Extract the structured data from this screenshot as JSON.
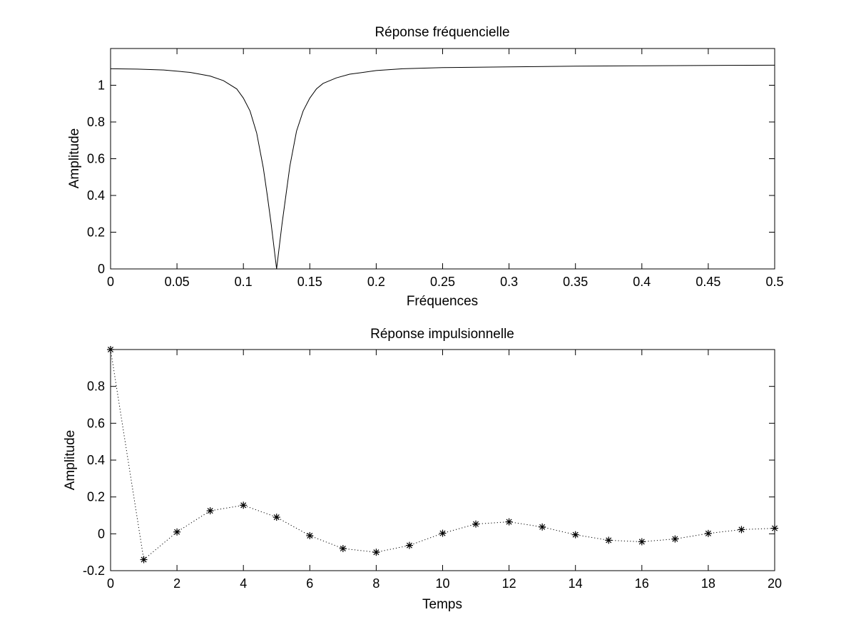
{
  "chart_data": [
    {
      "type": "line",
      "title": "Réponse fréquencielle",
      "xlabel": "Fréquences",
      "ylabel": "Amplitude",
      "xlim": [
        0,
        0.5
      ],
      "ylim": [
        0,
        1.2
      ],
      "xticks": [
        0,
        0.05,
        0.1,
        0.15,
        0.2,
        0.25,
        0.3,
        0.35,
        0.4,
        0.45,
        0.5
      ],
      "xtick_labels": [
        "0",
        "0.05",
        "0.1",
        "0.15",
        "0.2",
        "0.25",
        "0.3",
        "0.35",
        "0.4",
        "0.45",
        "0.5"
      ],
      "yticks": [
        0,
        0.2,
        0.4,
        0.6,
        0.8,
        1
      ],
      "ytick_labels": [
        "0",
        "0.2",
        "0.4",
        "0.6",
        "0.8",
        "1"
      ],
      "grid": false,
      "line_style": "solid",
      "color": "#000000",
      "series": [
        {
          "x": [
            0,
            0.02,
            0.04,
            0.06,
            0.075,
            0.085,
            0.095,
            0.1,
            0.105,
            0.11,
            0.115,
            0.118,
            0.121,
            0.123,
            0.125,
            0.127,
            0.129,
            0.132,
            0.135,
            0.14,
            0.145,
            0.15,
            0.155,
            0.16,
            0.17,
            0.18,
            0.2,
            0.22,
            0.25,
            0.3,
            0.35,
            0.4,
            0.45,
            0.5
          ],
          "y": [
            1.09,
            1.088,
            1.083,
            1.07,
            1.05,
            1.025,
            0.98,
            0.93,
            0.86,
            0.74,
            0.55,
            0.4,
            0.24,
            0.12,
            0.0,
            0.12,
            0.24,
            0.4,
            0.56,
            0.75,
            0.86,
            0.93,
            0.98,
            1.01,
            1.04,
            1.06,
            1.08,
            1.09,
            1.096,
            1.1,
            1.104,
            1.106,
            1.108,
            1.109
          ]
        }
      ]
    },
    {
      "type": "line",
      "title": "Réponse impulsionnelle",
      "xlabel": "Temps",
      "ylabel": "Amplitude",
      "xlim": [
        0,
        20
      ],
      "ylim": [
        -0.2,
        1
      ],
      "xticks": [
        0,
        2,
        4,
        6,
        8,
        10,
        12,
        14,
        16,
        18,
        20
      ],
      "xtick_labels": [
        "0",
        "2",
        "4",
        "6",
        "8",
        "10",
        "12",
        "14",
        "16",
        "18",
        "20"
      ],
      "yticks": [
        -0.2,
        0,
        0.2,
        0.4,
        0.6,
        0.8
      ],
      "ytick_labels": [
        "-0.2",
        "0",
        "0.2",
        "0.4",
        "0.6",
        "0.8"
      ],
      "grid": false,
      "line_style": "dotted",
      "marker": "asterisk",
      "color": "#000000",
      "series": [
        {
          "x": [
            0,
            1,
            2,
            3,
            4,
            5,
            6,
            7,
            8,
            9,
            10,
            11,
            12,
            13,
            14,
            15,
            16,
            17,
            18,
            19,
            20
          ],
          "y": [
            1.0,
            -0.14,
            0.01,
            0.125,
            0.155,
            0.09,
            -0.01,
            -0.08,
            -0.1,
            -0.063,
            0.003,
            0.053,
            0.065,
            0.037,
            -0.005,
            -0.035,
            -0.043,
            -0.028,
            0.002,
            0.023,
            0.03
          ]
        }
      ]
    }
  ]
}
